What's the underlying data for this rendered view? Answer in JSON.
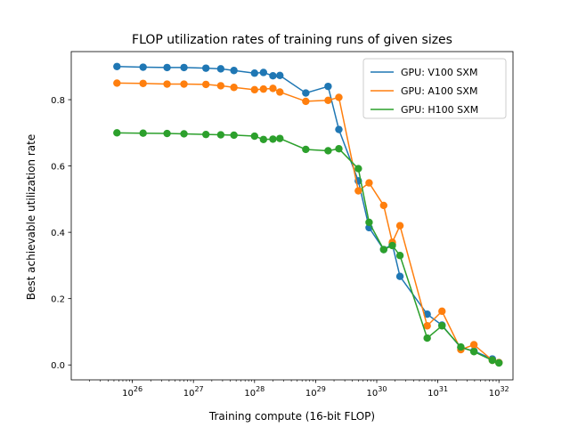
{
  "chart_data": {
    "type": "line",
    "title": "FLOP utilization rates of training runs of given sizes",
    "xlabel": "Training compute (16-bit FLOP)",
    "ylabel": "Best achievable utilization rate",
    "x_scale": "log",
    "x_tick_exponents": [
      26,
      27,
      28,
      29,
      30,
      31,
      32
    ],
    "x_tick_labels": [
      "10^26",
      "10^27",
      "10^28",
      "10^29",
      "10^30",
      "10^31",
      "10^32"
    ],
    "xlim": [
      1e+25,
      1.7e+32
    ],
    "ylim": [
      -0.045,
      0.945
    ],
    "y_ticks": [
      0.0,
      0.2,
      0.4,
      0.6,
      0.8
    ],
    "y_tick_labels": [
      "0.0",
      "0.2",
      "0.4",
      "0.6",
      "0.8"
    ],
    "legend_position": "top-right",
    "grid": false,
    "series": [
      {
        "name": "GPU: V100 SXM",
        "color": "#1f77b4",
        "x": [
          5.6e+25,
          1.5e+26,
          3.7e+26,
          7e+26,
          1.6e+27,
          2.8e+27,
          4.6e+27,
          1e+28,
          1.4e+28,
          2e+28,
          2.6e+28,
          6.9e+28,
          1.6e+29,
          2.4e+29,
          5e+29,
          7.5e+29,
          1.3e+30,
          1.8e+30,
          2.4e+30,
          6.7e+30,
          1.17e+31,
          2.38e+31,
          3.9e+31,
          7.8e+31,
          1e+32
        ],
        "y": [
          0.9,
          0.898,
          0.897,
          0.897,
          0.895,
          0.893,
          0.888,
          0.88,
          0.882,
          0.872,
          0.873,
          0.82,
          0.84,
          0.71,
          0.555,
          0.414,
          0.348,
          0.364,
          0.267,
          0.153,
          0.12,
          0.052,
          0.042,
          0.018,
          0.007
        ]
      },
      {
        "name": "GPU: A100 SXM",
        "color": "#ff7f0e",
        "x": [
          5.6e+25,
          1.5e+26,
          3.7e+26,
          7e+26,
          1.6e+27,
          2.8e+27,
          4.6e+27,
          1e+28,
          1.4e+28,
          2e+28,
          2.6e+28,
          6.9e+28,
          1.6e+29,
          2.4e+29,
          5e+29,
          7.5e+29,
          1.3e+30,
          1.8e+30,
          2.4e+30,
          6.7e+30,
          1.17e+31,
          2.38e+31,
          3.9e+31,
          7.8e+31,
          1e+32
        ],
        "y": [
          0.85,
          0.849,
          0.847,
          0.847,
          0.846,
          0.842,
          0.837,
          0.83,
          0.832,
          0.834,
          0.823,
          0.795,
          0.798,
          0.807,
          0.525,
          0.549,
          0.481,
          0.37,
          0.42,
          0.118,
          0.162,
          0.046,
          0.061,
          0.014,
          0.007
        ]
      },
      {
        "name": "GPU: H100 SXM",
        "color": "#2ca02c",
        "x": [
          5.6e+25,
          1.5e+26,
          3.7e+26,
          7e+26,
          1.6e+27,
          2.8e+27,
          4.6e+27,
          1e+28,
          1.4e+28,
          2e+28,
          2.6e+28,
          6.9e+28,
          1.6e+29,
          2.4e+29,
          5e+29,
          7.5e+29,
          1.3e+30,
          1.8e+30,
          2.4e+30,
          6.7e+30,
          1.17e+31,
          2.38e+31,
          3.9e+31,
          7.8e+31,
          1e+32
        ],
        "y": [
          0.7,
          0.699,
          0.698,
          0.697,
          0.695,
          0.694,
          0.693,
          0.69,
          0.68,
          0.681,
          0.683,
          0.65,
          0.646,
          0.652,
          0.592,
          0.43,
          0.348,
          0.36,
          0.33,
          0.081,
          0.118,
          0.054,
          0.04,
          0.014,
          0.006
        ]
      }
    ]
  }
}
